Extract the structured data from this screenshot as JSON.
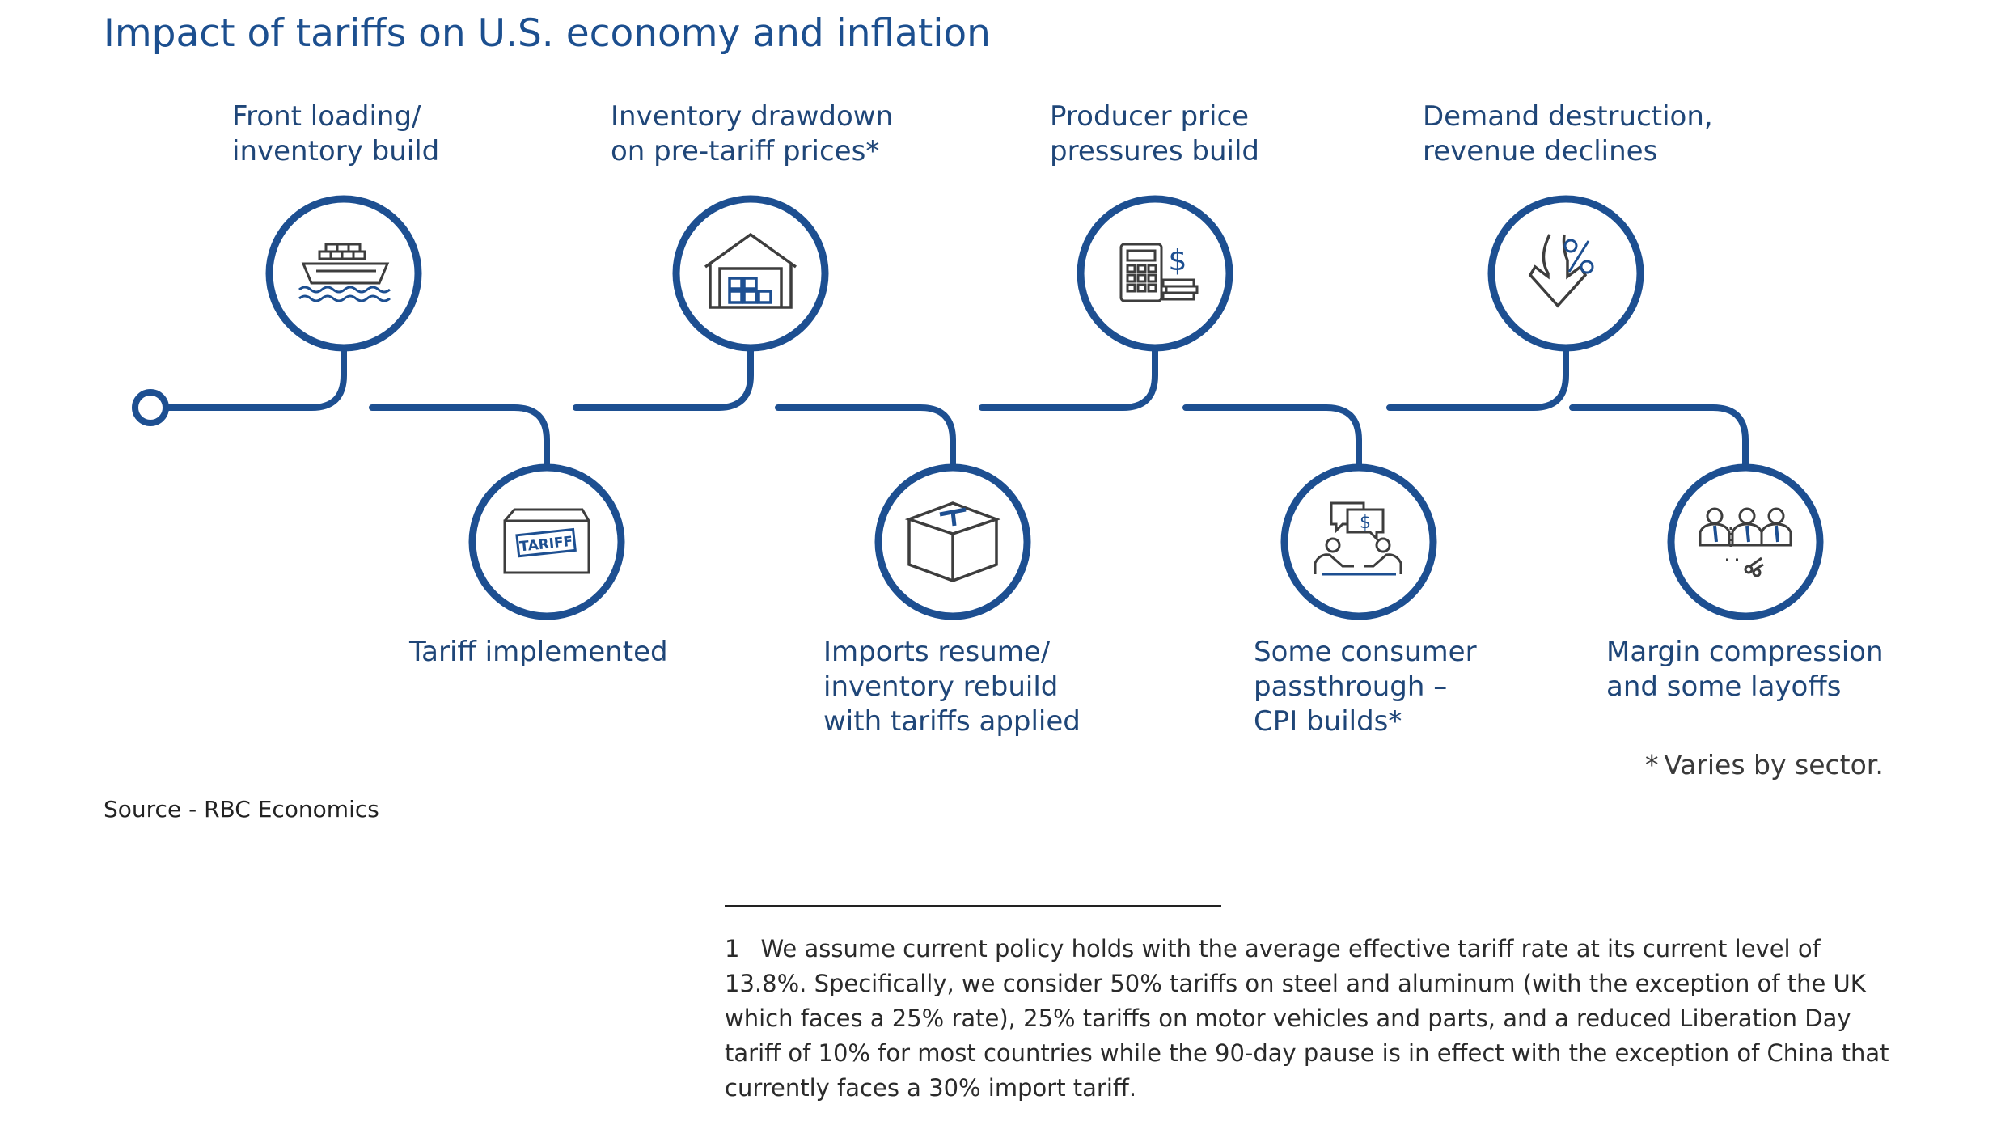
{
  "title": "Impact of tariffs on U.S. economy and inflation",
  "steps": [
    {
      "label": [
        "Front loading/",
        "inventory build"
      ],
      "icon": "cargo-ship-icon"
    },
    {
      "label": [
        "Tariff implemented"
      ],
      "icon": "tariff-box-icon"
    },
    {
      "label": [
        "Inventory drawdown",
        "on pre-tariff prices*"
      ],
      "icon": "warehouse-icon"
    },
    {
      "label": [
        "Imports resume/",
        "inventory rebuild",
        "with tariffs applied"
      ],
      "icon": "open-box-icon"
    },
    {
      "label": [
        "Producer price",
        "pressures build"
      ],
      "icon": "calculator-dollar-icon"
    },
    {
      "label": [
        "Some consumer",
        "passthrough –",
        "CPI builds*"
      ],
      "icon": "consumer-chat-dollar-icon"
    },
    {
      "label": [
        "Demand destruction,",
        "revenue declines"
      ],
      "icon": "percent-down-arrow-icon"
    },
    {
      "label": [
        "Margin compression",
        "and some layoffs"
      ],
      "icon": "people-scissors-icon"
    }
  ],
  "note": "* Varies by sector.",
  "source": "Source - RBC Economics",
  "footnote": {
    "number": "1",
    "text": "We assume current policy holds with the average effective tariff rate at its current level of 13.8%. Specifically, we consider 50% tariffs on steel and aluminum (with the exception of the UK which faces a 25% rate), 25% tariffs on motor vehicles and parts, and a reduced Liberation Day tariff of 10% for most countries while the 90-day pause is in effect with the exception of China that currently faces a 30% import tariff."
  },
  "colors": {
    "accent": "#1d4f91",
    "line": "#1d4f91",
    "text": "#1f4678"
  }
}
